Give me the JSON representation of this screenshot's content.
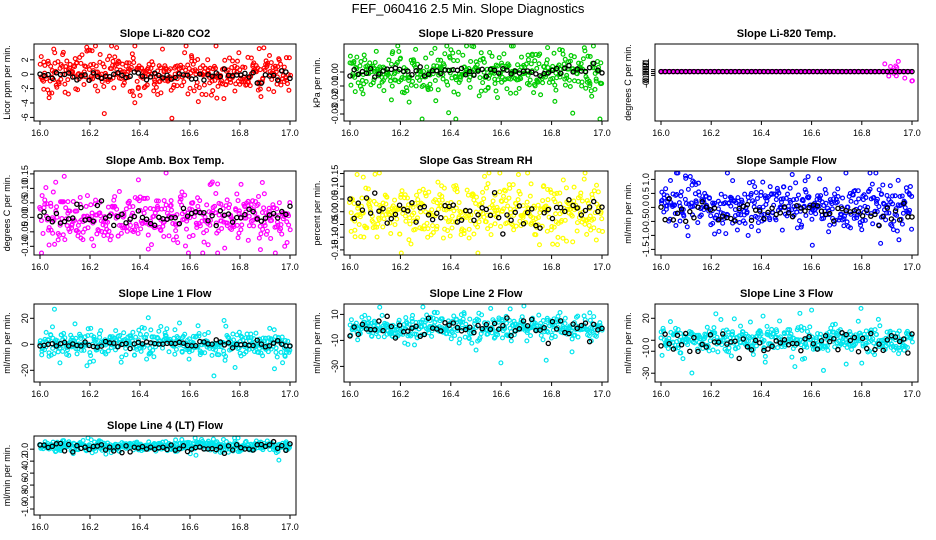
{
  "page": {
    "title": "FEF_060416  2.5 Min. Slope Diagnostics"
  },
  "chart_data": [
    {
      "type": "scatter",
      "title": "Slope Li-820 CO2",
      "ylabel": "Licor ppm per min.",
      "xlim": [
        16.0,
        17.0
      ],
      "ylim": [
        -6.5,
        4.2
      ],
      "xticks": [
        16.0,
        16.2,
        16.4,
        16.6,
        16.8,
        17.0
      ],
      "xtick_labels": [
        "16.0",
        "16.2",
        "16.4",
        "16.6",
        "16.8",
        "17.0"
      ],
      "yticks": [
        2,
        0,
        -2,
        -4,
        -6
      ],
      "ytick_labels": [
        "2",
        "0",
        "-2",
        "-4",
        "-6"
      ],
      "spread": 1.6,
      "center": 0.0,
      "mean": -0.2,
      "black_spread": 0.4,
      "series": [
        {
          "name": "all",
          "color": "#ff0000"
        },
        {
          "name": "mean",
          "color": "#000000"
        }
      ]
    },
    {
      "type": "scatter",
      "title": "Slope Li-820 Pressure",
      "ylabel": "kPa per min.",
      "xlim": [
        16.0,
        17.0
      ],
      "ylim": [
        -0.035,
        0.02
      ],
      "xticks": [
        16.0,
        16.2,
        16.4,
        16.6,
        16.8,
        17.0
      ],
      "xtick_labels": [
        "16.0",
        "16.2",
        "16.4",
        "16.6",
        "16.8",
        "17.0"
      ],
      "yticks": [
        0.0,
        -0.01,
        -0.02,
        -0.03
      ],
      "ytick_labels": [
        "0.00",
        "-0.01",
        "-0.02",
        "-0.03"
      ],
      "spread": 0.008,
      "center": 0.0,
      "mean": 0.0,
      "black_spread": 0.002,
      "series": [
        {
          "name": "all",
          "color": "#00cc00"
        },
        {
          "name": "mean",
          "color": "#000000"
        }
      ]
    },
    {
      "type": "scatter",
      "title": "Slope Li-820 Temp.",
      "ylabel": "degrees C per min.",
      "xlim": [
        16.0,
        17.0
      ],
      "ylim": [
        -0.026,
        0.0145
      ],
      "xticks": [
        16.0,
        16.2,
        16.4,
        16.6,
        16.8,
        17.0
      ],
      "xtick_labels": [
        "16.0",
        "16.2",
        "16.4",
        "16.6",
        "16.8",
        "17.0"
      ],
      "yticks": [
        0.001,
        0.0,
        -0.001,
        -0.002
      ],
      "ytick_labels": [
        "0.001",
        "0.000",
        "-0.001",
        "-0.002"
      ],
      "spread": 0.0,
      "center": 0.0,
      "mean": 0.0,
      "black_spread": 0.0,
      "series": [
        {
          "name": "all",
          "color": "#ff00ff"
        },
        {
          "name": "mean",
          "color": "#000000"
        }
      ]
    },
    {
      "type": "scatter",
      "title": "Slope Amb. Box Temp.",
      "ylabel": "degrees C per min.",
      "xlim": [
        16.0,
        17.0
      ],
      "ylim": [
        -0.13,
        0.16
      ],
      "xticks": [
        16.0,
        16.2,
        16.4,
        16.6,
        16.8,
        17.0
      ],
      "xtick_labels": [
        "16.0",
        "16.2",
        "16.4",
        "16.6",
        "16.8",
        "17.0"
      ],
      "yticks": [
        0.15,
        0.1,
        0.05,
        0.0,
        -0.05,
        -0.1
      ],
      "ytick_labels": [
        "0.15",
        "0.10",
        "0.05",
        "0.00",
        "-0.05",
        "-0.10"
      ],
      "spread": 0.05,
      "center": 0.0,
      "mean": 0.0,
      "black_spread": 0.02,
      "series": [
        {
          "name": "all",
          "color": "#ff00ff"
        },
        {
          "name": "mean",
          "color": "#000000"
        }
      ]
    },
    {
      "type": "scatter",
      "title": "Slope Gas Stream RH",
      "ylabel": "percent per min.",
      "xlim": [
        16.0,
        17.0
      ],
      "ylim": [
        -0.17,
        0.16
      ],
      "xticks": [
        16.0,
        16.2,
        16.4,
        16.6,
        16.8,
        17.0
      ],
      "xtick_labels": [
        "16.0",
        "16.2",
        "16.4",
        "16.6",
        "16.8",
        "17.0"
      ],
      "yticks": [
        0.15,
        0.1,
        0.05,
        0.0,
        -0.05,
        -0.1,
        -0.15
      ],
      "ytick_labels": [
        "0.15",
        "0.10",
        "0.05",
        "0.00",
        "-0.05",
        "-0.10",
        "-0.15"
      ],
      "spread": 0.06,
      "center": 0.0,
      "mean": 0.0,
      "black_spread": 0.03,
      "series": [
        {
          "name": "all",
          "color": "#ffff00"
        },
        {
          "name": "mean",
          "color": "#000000"
        }
      ]
    },
    {
      "type": "scatter",
      "title": "Slope Sample Flow",
      "ylabel": "ml/min per min.",
      "xlim": [
        16.0,
        17.0
      ],
      "ylim": [
        -1.7,
        1.3
      ],
      "xticks": [
        16.0,
        16.2,
        16.4,
        16.6,
        16.8,
        17.0
      ],
      "xtick_labels": [
        "16.0",
        "16.2",
        "16.4",
        "16.6",
        "16.8",
        "17.0"
      ],
      "yticks": [
        1.0,
        0.5,
        0.0,
        -0.5,
        -1.0,
        -1.5
      ],
      "ytick_labels": [
        "1.0",
        "0.5",
        "0.0",
        "-0.5",
        "-1.0",
        "-1.5"
      ],
      "spread": 0.45,
      "center": 0.0,
      "mean": -0.2,
      "black_spread": 0.2,
      "series": [
        {
          "name": "all",
          "color": "#0000ff"
        },
        {
          "name": "mean",
          "color": "#000000"
        }
      ]
    },
    {
      "type": "scatter",
      "title": "Slope Line 1 Flow",
      "ylabel": "ml/min per min.",
      "xlim": [
        16.0,
        17.0
      ],
      "ylim": [
        -29,
        31
      ],
      "xticks": [
        16.0,
        16.2,
        16.4,
        16.6,
        16.8,
        17.0
      ],
      "xtick_labels": [
        "16.0",
        "16.2",
        "16.4",
        "16.6",
        "16.8",
        "17.0"
      ],
      "yticks": [
        20,
        0,
        -20
      ],
      "ytick_labels": [
        "20",
        "0",
        "-20"
      ],
      "spread": 6,
      "center": 0.0,
      "mean": 0.0,
      "black_spread": 1.5,
      "series": [
        {
          "name": "all",
          "color": "#00e5ee"
        },
        {
          "name": "mean",
          "color": "#000000"
        }
      ]
    },
    {
      "type": "scatter",
      "title": "Slope Line 2 Flow",
      "ylabel": "ml/min per min.",
      "xlim": [
        16.0,
        17.0
      ],
      "ylim": [
        -42,
        18
      ],
      "xticks": [
        16.0,
        16.2,
        16.4,
        16.6,
        16.8,
        17.0
      ],
      "xtick_labels": [
        "16.0",
        "16.2",
        "16.4",
        "16.6",
        "16.8",
        "17.0"
      ],
      "yticks": [
        10,
        -10,
        -30
      ],
      "ytick_labels": [
        "10",
        "-10",
        "-30"
      ],
      "spread": 5,
      "center": 0.0,
      "mean": 0.0,
      "black_spread": 4,
      "series": [
        {
          "name": "all",
          "color": "#00e5ee"
        },
        {
          "name": "mean",
          "color": "#000000"
        }
      ]
    },
    {
      "type": "scatter",
      "title": "Slope Line 3 Flow",
      "ylabel": "ml/min per min.",
      "xlim": [
        16.0,
        17.0
      ],
      "ylim": [
        -38,
        33
      ],
      "xticks": [
        16.0,
        16.2,
        16.4,
        16.6,
        16.8,
        17.0
      ],
      "xtick_labels": [
        "16.0",
        "16.2",
        "16.4",
        "16.6",
        "16.8",
        "17.0"
      ],
      "yticks": [
        20,
        0,
        -10,
        -30
      ],
      "ytick_labels": [
        "20",
        "0",
        "-10",
        "-30"
      ],
      "spread": 7,
      "center": 0.0,
      "mean": -3,
      "black_spread": 5,
      "series": [
        {
          "name": "all",
          "color": "#00e5ee"
        },
        {
          "name": "mean",
          "color": "#000000"
        }
      ]
    },
    {
      "type": "scatter",
      "title": "Slope Line 4 (LT) Flow",
      "ylabel": "ml/min per min.",
      "xlim": [
        16.0,
        17.0
      ],
      "ylim": [
        -1.1,
        0.22
      ],
      "xticks": [
        16.0,
        16.2,
        16.4,
        16.6,
        16.8,
        17.0
      ],
      "xtick_labels": [
        "16.0",
        "16.2",
        "16.4",
        "16.6",
        "16.8",
        "17.0"
      ],
      "yticks": [
        0.0,
        -0.2,
        -0.4,
        -0.6,
        -0.8,
        -1.0
      ],
      "ytick_labels": [
        "0.0",
        "-0.2",
        "-0.4",
        "-0.6",
        "-0.8",
        "-1.0"
      ],
      "spread": 0.05,
      "center": 0.05,
      "mean": 0.02,
      "black_spread": 0.04,
      "series": [
        {
          "name": "all",
          "color": "#00e5ee"
        },
        {
          "name": "mean",
          "color": "#000000"
        }
      ]
    }
  ]
}
